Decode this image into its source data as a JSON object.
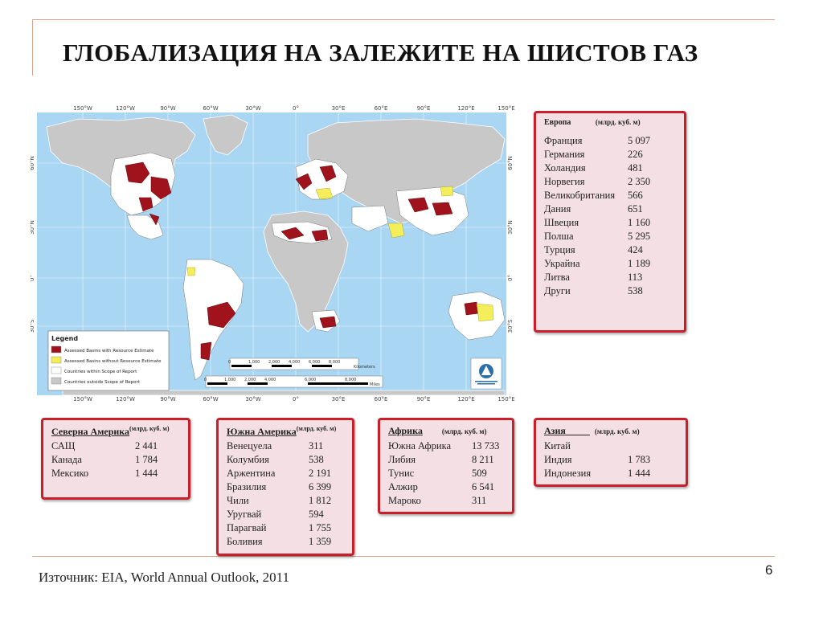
{
  "title": "ГЛОБАЛИЗАЦИЯ НА ЗАЛЕЖИТЕ НА ШИСТОВ ГАЗ",
  "map": {
    "top_ticks": [
      "150°W",
      "120°W",
      "90°W",
      "60°W",
      "30°W",
      "0°",
      "30°E",
      "60°E",
      "90°E",
      "120°E",
      "150°E"
    ],
    "bottom_ticks": [
      "150°W",
      "120°W",
      "90°W",
      "60°W",
      "30°W",
      "0°",
      "30°E",
      "60°E",
      "90°E",
      "120°E",
      "150°E"
    ],
    "lat_ticks_left": [
      "60°N",
      "30°N",
      "0°",
      "30°S"
    ],
    "lat_ticks_right": [
      "60°N",
      "30°N",
      "0°",
      "30°S"
    ],
    "legend": {
      "title": "Legend",
      "items": [
        {
          "label": "Assessed Basins with Resource Estimate",
          "color": "#a0121c"
        },
        {
          "label": "Assessed Basins without Resource Estimate",
          "color": "#f4ee5a"
        },
        {
          "label": "Countries within Scope of Report",
          "color": "#ffffff"
        },
        {
          "label": "Countries outside Scope of Report",
          "color": "#c8c8c8"
        }
      ]
    },
    "scale_km": {
      "ticks": [
        "0",
        "1,000",
        "2,000",
        "4,000",
        "6,000",
        "8,000"
      ],
      "unit": "Kilometers"
    },
    "scale_mi": {
      "ticks": [
        "0",
        "1,000",
        "2,000",
        "4,000",
        "6,000",
        "8,000"
      ],
      "unit": "Miles"
    },
    "ocean_color": "#a9d6f2",
    "land_color": "#c8c8c8"
  },
  "europe": {
    "title": "Европа",
    "unit": "(млрд. куб. м)",
    "rows": [
      {
        "country": "Франция",
        "value": "5 097"
      },
      {
        "country": "Германия",
        "value": "226"
      },
      {
        "country": "Холандия",
        "value": "481"
      },
      {
        "country": "Норвегия",
        "value": "2 350"
      },
      {
        "country": "Великобритания",
        "value": "566"
      },
      {
        "country": "Дания",
        "value": "651"
      },
      {
        "country": "Швеция",
        "value": "1 160"
      },
      {
        "country": "Полша",
        "value": "5 295"
      },
      {
        "country": "Турция",
        "value": "424"
      },
      {
        "country": "Украйна",
        "value": "1 189"
      },
      {
        "country": "Литва",
        "value": "113"
      },
      {
        "country": "Други",
        "value": "538"
      }
    ]
  },
  "north_america": {
    "title": "Северна Америка",
    "unit": "(млрд. куб. м)",
    "rows": [
      {
        "country": "САЩ",
        "value": "2 441"
      },
      {
        "country": "Канада",
        "value": "1 784"
      },
      {
        "country": "Мексико",
        "value": "1 444"
      }
    ]
  },
  "south_america": {
    "title": "Южна Америка",
    "unit": "(млрд. куб. м)",
    "rows": [
      {
        "country": "Венецуела",
        "value": "311"
      },
      {
        "country": "Колумбия",
        "value": "538"
      },
      {
        "country": "Аржентина",
        "value": "2 191"
      },
      {
        "country": "Бразилия",
        "value": "6 399"
      },
      {
        "country": "Чили",
        "value": "1 812"
      },
      {
        "country": "Уругвай",
        "value": "594"
      },
      {
        "country": "Парагвай",
        "value": "1 755"
      },
      {
        "country": "Боливия",
        "value": "1 359"
      }
    ]
  },
  "africa": {
    "title": "Африка",
    "unit": "(млрд. куб. м)",
    "rows": [
      {
        "country": "Южна Африка",
        "value": "13 733"
      },
      {
        "country": "Либия",
        "value": "8 211"
      },
      {
        "country": "Тунис",
        "value": "509"
      },
      {
        "country": "Алжир",
        "value": "6 541"
      },
      {
        "country": "Мароко",
        "value": "311"
      }
    ]
  },
  "asia": {
    "title": "Азия",
    "unit": "(млрд. куб. м)",
    "rows": [
      {
        "country": "Китай",
        "value": ""
      },
      {
        "country": "Индия",
        "value": "1 783"
      },
      {
        "country": "Индонезия",
        "value": "1 444"
      }
    ]
  },
  "source": "Източник: EIA, World Annual Outlook, 2011",
  "page_number": "6"
}
